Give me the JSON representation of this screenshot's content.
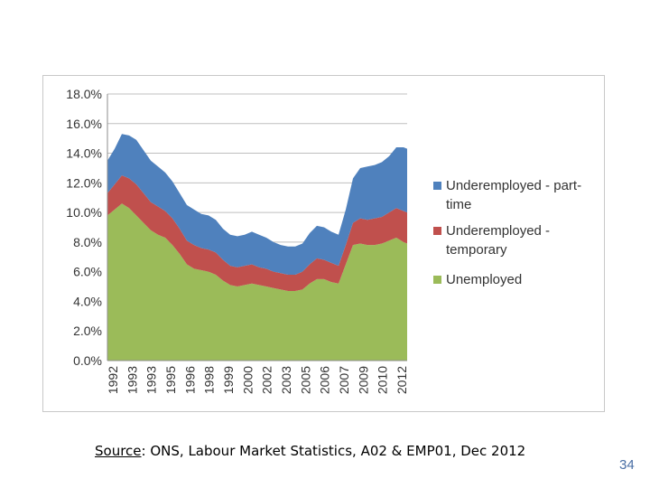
{
  "slide": {
    "source_label": "Source",
    "source_text": ": ONS, Labour Market Statistics, A02 & EMP01, Dec 2012",
    "page_number": "34"
  },
  "chart_data": {
    "type": "area",
    "stacked": true,
    "title": "",
    "xlabel": "",
    "ylabel": "",
    "ylim": [
      0,
      18
    ],
    "y_ticks": [
      "0.0%",
      "2.0%",
      "4.0%",
      "6.0%",
      "8.0%",
      "10.0%",
      "12.0%",
      "14.0%",
      "16.0%",
      "18.0%"
    ],
    "x_tick_labels": [
      "1992",
      "1993",
      "1993",
      "1995",
      "1996",
      "1998",
      "1999",
      "2000",
      "2002",
      "2003",
      "2005",
      "2006",
      "2007",
      "2009",
      "2010",
      "2012"
    ],
    "x_range": [
      1992.0,
      2012.75
    ],
    "x": [
      1992.0,
      1992.5,
      1993.0,
      1993.5,
      1994.0,
      1994.5,
      1995.0,
      1995.5,
      1996.0,
      1996.5,
      1997.0,
      1997.5,
      1998.0,
      1998.5,
      1999.0,
      1999.5,
      2000.0,
      2000.5,
      2001.0,
      2001.5,
      2002.0,
      2002.5,
      2003.0,
      2003.5,
      2004.0,
      2004.5,
      2005.0,
      2005.5,
      2006.0,
      2006.5,
      2007.0,
      2007.5,
      2008.0,
      2008.5,
      2009.0,
      2009.5,
      2010.0,
      2010.5,
      2011.0,
      2011.5,
      2012.0,
      2012.5,
      2012.75
    ],
    "series": [
      {
        "name": "Unemployed",
        "color": "#9bbb59",
        "values": [
          9.8,
          10.2,
          10.6,
          10.3,
          9.8,
          9.3,
          8.8,
          8.5,
          8.3,
          7.8,
          7.2,
          6.5,
          6.2,
          6.1,
          6.0,
          5.8,
          5.4,
          5.1,
          5.0,
          5.1,
          5.2,
          5.1,
          5.0,
          4.9,
          4.8,
          4.7,
          4.7,
          4.8,
          5.2,
          5.5,
          5.5,
          5.3,
          5.2,
          6.5,
          7.8,
          7.9,
          7.8,
          7.8,
          7.9,
          8.1,
          8.3,
          8.0,
          7.9
        ]
      },
      {
        "name": "Underemployed - temporary",
        "color": "#c0504d",
        "values": [
          1.5,
          1.7,
          1.9,
          2.0,
          2.1,
          2.0,
          1.9,
          1.9,
          1.8,
          1.8,
          1.7,
          1.6,
          1.6,
          1.5,
          1.5,
          1.5,
          1.4,
          1.3,
          1.3,
          1.3,
          1.3,
          1.2,
          1.2,
          1.1,
          1.1,
          1.1,
          1.1,
          1.2,
          1.3,
          1.4,
          1.3,
          1.3,
          1.2,
          1.3,
          1.5,
          1.7,
          1.7,
          1.8,
          1.8,
          1.9,
          2.0,
          2.1,
          2.1
        ]
      },
      {
        "name": "Underemployed - part-time",
        "color": "#4f81bd",
        "values": [
          2.2,
          2.4,
          2.8,
          2.9,
          3.0,
          2.9,
          2.8,
          2.7,
          2.6,
          2.5,
          2.4,
          2.4,
          2.4,
          2.3,
          2.3,
          2.2,
          2.1,
          2.1,
          2.1,
          2.1,
          2.2,
          2.2,
          2.1,
          2.0,
          1.9,
          1.9,
          1.9,
          1.9,
          2.1,
          2.2,
          2.2,
          2.1,
          2.1,
          2.4,
          3.0,
          3.4,
          3.6,
          3.6,
          3.7,
          3.8,
          4.1,
          4.3,
          4.3
        ]
      }
    ],
    "legend_order": [
      "Underemployed - part-time",
      "Underemployed - temporary",
      "Unemployed"
    ],
    "legend_lines": [
      [
        "Underemployed - part-",
        "time"
      ],
      [
        "Underemployed -",
        "temporary"
      ],
      [
        "Unemployed"
      ]
    ],
    "legend_position": "right",
    "grid": "horizontal"
  }
}
